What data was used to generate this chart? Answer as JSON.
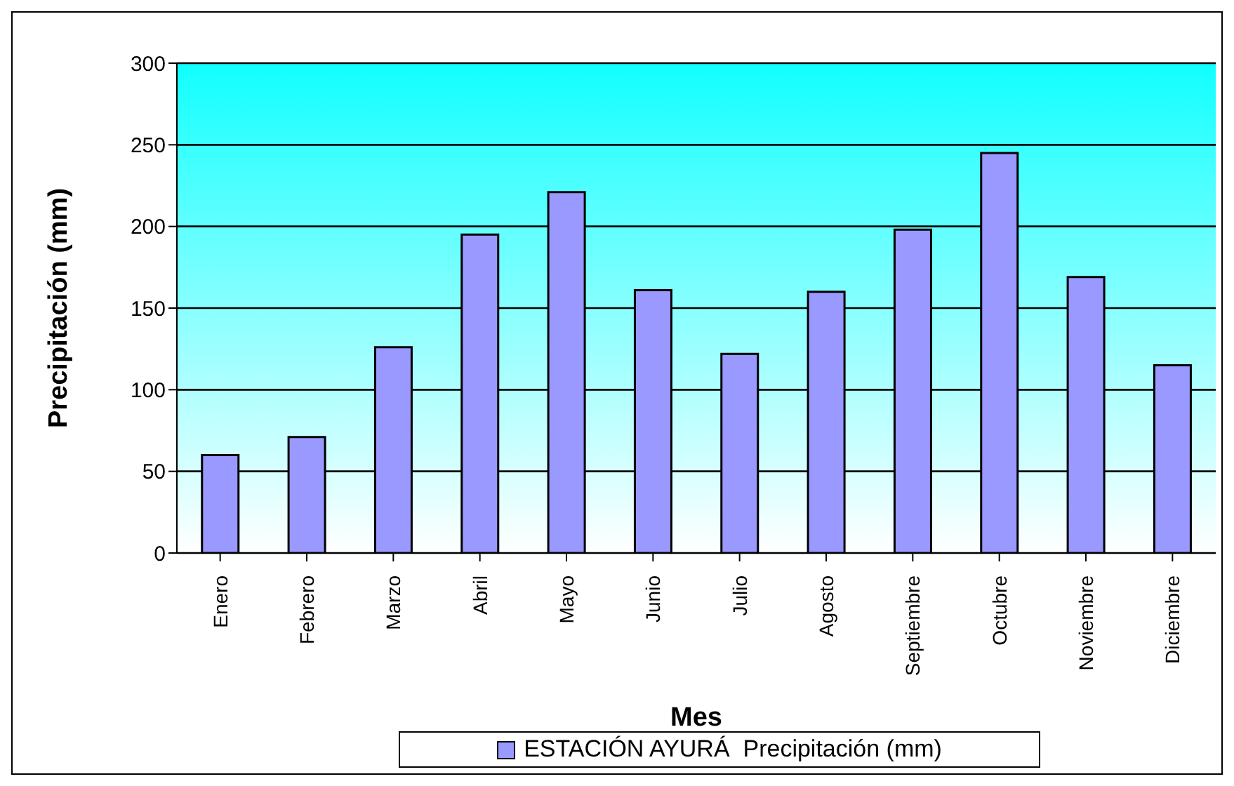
{
  "chart_data": {
    "type": "bar",
    "xlabel": "Mes",
    "ylabel": "Precipitación (mm)",
    "categories": [
      "Enero",
      "Febrero",
      "Marzo",
      "Abril",
      "Mayo",
      "Junio",
      "Julio",
      "Agosto",
      "Septiembre",
      "Octubre",
      "Noviembre",
      "Diciembre"
    ],
    "series": [
      {
        "name": "ESTACIÓN AYURÁ  Precipitación (mm)",
        "color": "#9999ff",
        "values": [
          60,
          71,
          126,
          195,
          221,
          161,
          122,
          160,
          198,
          245,
          169,
          115
        ]
      }
    ],
    "ylim": [
      0,
      300
    ],
    "yticks": [
      0,
      50,
      100,
      150,
      200,
      250,
      300
    ],
    "grid": "y",
    "legend": "bottom"
  }
}
